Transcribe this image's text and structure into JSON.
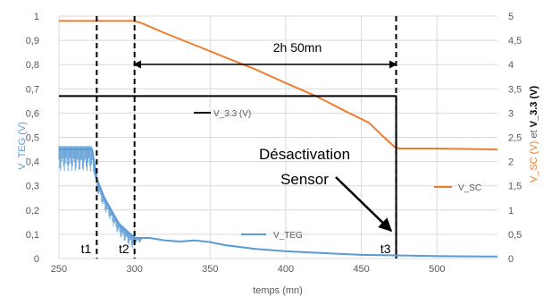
{
  "chart_data": {
    "type": "line",
    "xlabel": "temps (mn)",
    "ylabel_left": "V_TEG (V)",
    "ylabel_right_parts": [
      "V_SC (V)",
      " et ",
      "V_3.3 (V)"
    ],
    "xlim": [
      250,
      540
    ],
    "ylim_left": [
      0,
      1
    ],
    "ylim_right": [
      0,
      5
    ],
    "xticks": [
      250,
      300,
      350,
      400,
      450,
      500
    ],
    "xtick_labels": [
      "250",
      "300",
      "350",
      "400",
      "450",
      "500"
    ],
    "yticks_left": [
      0,
      0.1,
      0.2,
      0.3,
      0.4,
      0.5,
      0.6,
      0.7,
      0.8,
      0.9,
      1
    ],
    "ytick_labels_left": [
      "0",
      "0,1",
      "0,2",
      "0,3",
      "0,4",
      "0,5",
      "0,6",
      "0,7",
      "0,8",
      "0,9",
      "1"
    ],
    "yticks_right": [
      0,
      0.5,
      1,
      1.5,
      2,
      2.5,
      3,
      3.5,
      4,
      4.5,
      5
    ],
    "ytick_labels_right": [
      "0",
      "0,5",
      "1",
      "1,5",
      "2",
      "2,5",
      "3",
      "3,5",
      "4",
      "4,5",
      "5"
    ],
    "grid": true,
    "colors": {
      "v_sc": "#ED7D31",
      "v_33": "#000000",
      "v_teg": "#5B9BD5",
      "grid": "#d9d9d9"
    },
    "series": [
      {
        "name": "V_SC",
        "axis": "right",
        "x": [
          250,
          300,
          305,
          320,
          340,
          360,
          380,
          400,
          420,
          440,
          455,
          465,
          472,
          475,
          500,
          540
        ],
        "y": [
          4.9,
          4.9,
          4.85,
          4.65,
          4.4,
          4.15,
          3.9,
          3.62,
          3.35,
          3.03,
          2.8,
          2.5,
          2.3,
          2.27,
          2.27,
          2.25
        ]
      },
      {
        "name": "V_3.3 (V)",
        "axis": "right",
        "x": [
          250,
          473,
          473
        ],
        "y": [
          3.35,
          3.35,
          0
        ]
      },
      {
        "name": "V_TEG",
        "axis": "left",
        "x": [
          250,
          272,
          275,
          280,
          290,
          297,
          300,
          310,
          320,
          330,
          340,
          350,
          360,
          380,
          400,
          450,
          500,
          540
        ],
        "y": [
          0.45,
          0.45,
          0.33,
          0.25,
          0.14,
          0.1,
          0.085,
          0.085,
          0.075,
          0.07,
          0.075,
          0.068,
          0.055,
          0.04,
          0.03,
          0.015,
          0.01,
          0.008
        ]
      }
    ],
    "markers": [
      {
        "label": "t1",
        "x": 275
      },
      {
        "label": "t2",
        "x": 300
      },
      {
        "label": "t3",
        "x": 473
      }
    ],
    "duration_label": "2h 50mn",
    "annotation_line1": "Désactivation",
    "annotation_line2": "Sensor"
  }
}
